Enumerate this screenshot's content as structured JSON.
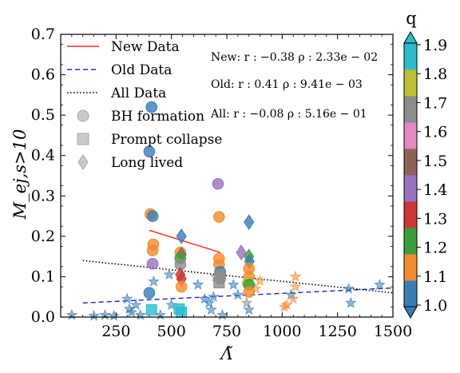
{
  "chart_data": {
    "type": "scatter",
    "xlabel": "Λ̃",
    "ylabel": "M_ej,s>10",
    "xlim": [
      0,
      1500
    ],
    "ylim": [
      0,
      0.7
    ],
    "xticks": [
      250,
      500,
      750,
      1000,
      1250,
      1500
    ],
    "xtick_labels": [
      "250",
      "500",
      "750",
      "1000",
      "1250",
      "1500"
    ],
    "yticks": [
      0.0,
      0.1,
      0.2,
      0.3,
      0.4,
      0.5,
      0.6,
      0.7
    ],
    "ytick_labels": [
      "0.0",
      "0.1",
      "0.2",
      "0.3",
      "0.4",
      "0.5",
      "0.6",
      "0.7"
    ],
    "grid": false,
    "legend_position": "top-left",
    "legend": [
      {
        "label": "New Data",
        "kind": "line",
        "style": "solid",
        "color": "#ff2a1a"
      },
      {
        "label": "Old Data",
        "kind": "line",
        "style": "dashed",
        "color": "#1f1fd6"
      },
      {
        "label": "All Data",
        "kind": "line",
        "style": "dotted",
        "color": "#000000"
      },
      {
        "label": "BH formation",
        "kind": "marker",
        "marker": "circle",
        "color": "#bdbdbd"
      },
      {
        "label": "Prompt collapse",
        "kind": "marker",
        "marker": "square",
        "color": "#bdbdbd"
      },
      {
        "label": "Long lived",
        "kind": "marker",
        "marker": "diamond",
        "color": "#bdbdbd"
      }
    ],
    "annotations": [
      "New: r : −0.38 ρ : 2.33e − 02",
      "Old: r : 0.41 ρ : 9.41e − 03",
      "All: r : −0.08 ρ : 5.16e − 01"
    ],
    "fit_lines": [
      {
        "name": "New Data",
        "x": [
          400,
          720
        ],
        "y": [
          0.215,
          0.16
        ]
      },
      {
        "name": "Old Data",
        "x": [
          100,
          1500
        ],
        "y": [
          0.035,
          0.072
        ]
      },
      {
        "name": "All Data",
        "x": [
          100,
          1500
        ],
        "y": [
          0.14,
          0.06
        ]
      }
    ],
    "colorbar": {
      "title": "q",
      "min": 1.0,
      "max": 1.9,
      "tick_labels": [
        "1.0",
        "1.1",
        "1.2",
        "1.3",
        "1.4",
        "1.5",
        "1.6",
        "1.7",
        "1.8",
        "1.9"
      ],
      "colors": [
        "#3a7db3",
        "#f58b30",
        "#3b9e3b",
        "#cc3737",
        "#9a72bd",
        "#8e6257",
        "#e389c2",
        "#8c8c8c",
        "#bdbf32",
        "#2dbbcc"
      ]
    },
    "points_new": [
      {
        "x": 410,
        "y": 0.52,
        "q": 1.0,
        "marker": "circle"
      },
      {
        "x": 400,
        "y": 0.41,
        "q": 1.0,
        "marker": "circle"
      },
      {
        "x": 405,
        "y": 0.255,
        "q": 1.1,
        "marker": "circle"
      },
      {
        "x": 415,
        "y": 0.25,
        "q": 1.0,
        "marker": "circle"
      },
      {
        "x": 418,
        "y": 0.18,
        "q": 1.1,
        "marker": "circle"
      },
      {
        "x": 415,
        "y": 0.165,
        "q": 1.1,
        "marker": "circle"
      },
      {
        "x": 415,
        "y": 0.132,
        "q": 1.4,
        "marker": "circle"
      },
      {
        "x": 400,
        "y": 0.06,
        "q": 1.0,
        "marker": "circle"
      },
      {
        "x": 410,
        "y": 0.018,
        "q": 1.9,
        "marker": "square"
      },
      {
        "x": 545,
        "y": 0.2,
        "q": 1.0,
        "marker": "diamond"
      },
      {
        "x": 540,
        "y": 0.16,
        "q": 1.1,
        "marker": "circle"
      },
      {
        "x": 545,
        "y": 0.155,
        "q": 1.5,
        "marker": "diamond"
      },
      {
        "x": 540,
        "y": 0.145,
        "q": 1.2,
        "marker": "circle"
      },
      {
        "x": 540,
        "y": 0.13,
        "q": 1.7,
        "marker": "circle"
      },
      {
        "x": 540,
        "y": 0.105,
        "q": 1.3,
        "marker": "diamond"
      },
      {
        "x": 545,
        "y": 0.095,
        "q": 1.3,
        "marker": "diamond"
      },
      {
        "x": 545,
        "y": 0.075,
        "q": 1.1,
        "marker": "circle"
      },
      {
        "x": 535,
        "y": 0.02,
        "q": 1.9,
        "marker": "square"
      },
      {
        "x": 545,
        "y": 0.012,
        "q": 1.9,
        "marker": "square"
      },
      {
        "x": 710,
        "y": 0.33,
        "q": 1.4,
        "marker": "circle"
      },
      {
        "x": 715,
        "y": 0.248,
        "q": 1.1,
        "marker": "circle"
      },
      {
        "x": 715,
        "y": 0.145,
        "q": 1.1,
        "marker": "circle"
      },
      {
        "x": 715,
        "y": 0.13,
        "q": 1.1,
        "marker": "circle"
      },
      {
        "x": 720,
        "y": 0.112,
        "q": 1.0,
        "marker": "circle"
      },
      {
        "x": 720,
        "y": 0.105,
        "q": 1.7,
        "marker": "circle"
      },
      {
        "x": 720,
        "y": 0.095,
        "q": 1.7,
        "marker": "circle"
      },
      {
        "x": 715,
        "y": 0.085,
        "q": 1.7,
        "marker": "square"
      },
      {
        "x": 850,
        "y": 0.235,
        "q": 1.0,
        "marker": "diamond"
      },
      {
        "x": 815,
        "y": 0.16,
        "q": 1.4,
        "marker": "diamond"
      },
      {
        "x": 850,
        "y": 0.15,
        "q": 1.2,
        "marker": "diamond"
      },
      {
        "x": 852,
        "y": 0.138,
        "q": 1.0,
        "marker": "diamond"
      },
      {
        "x": 850,
        "y": 0.12,
        "q": 1.1,
        "marker": "circle"
      },
      {
        "x": 850,
        "y": 0.1,
        "q": 1.1,
        "marker": "circle"
      },
      {
        "x": 845,
        "y": 0.085,
        "q": 1.8,
        "marker": "circle"
      },
      {
        "x": 850,
        "y": 0.08,
        "q": 1.2,
        "marker": "circle"
      },
      {
        "x": 850,
        "y": 0.062,
        "q": 1.1,
        "marker": "circle"
      }
    ],
    "points_old": [
      {
        "x": 50,
        "y": 0.005,
        "q": 1.0
      },
      {
        "x": 150,
        "y": 0.003,
        "q": 1.0
      },
      {
        "x": 200,
        "y": 0.005,
        "q": 1.0
      },
      {
        "x": 240,
        "y": 0.003,
        "q": 1.0
      },
      {
        "x": 300,
        "y": 0.045,
        "q": 1.0
      },
      {
        "x": 310,
        "y": 0.02,
        "q": 1.0
      },
      {
        "x": 320,
        "y": 0.012,
        "q": 1.0
      },
      {
        "x": 340,
        "y": 0.03,
        "q": 1.0
      },
      {
        "x": 360,
        "y": 0.005,
        "q": 1.0
      },
      {
        "x": 420,
        "y": 0.088,
        "q": 1.0
      },
      {
        "x": 450,
        "y": 0.005,
        "q": 1.0
      },
      {
        "x": 490,
        "y": 0.105,
        "q": 1.0
      },
      {
        "x": 500,
        "y": 0.03,
        "q": 1.0
      },
      {
        "x": 620,
        "y": 0.08,
        "q": 1.0
      },
      {
        "x": 650,
        "y": 0.045,
        "q": 1.0
      },
      {
        "x": 670,
        "y": 0.035,
        "q": 1.0
      },
      {
        "x": 680,
        "y": 0.018,
        "q": 1.0
      },
      {
        "x": 690,
        "y": 0.05,
        "q": 1.0
      },
      {
        "x": 700,
        "y": 0.1,
        "q": 1.7
      },
      {
        "x": 730,
        "y": 0.005,
        "q": 1.0
      },
      {
        "x": 780,
        "y": 0.08,
        "q": 1.0
      },
      {
        "x": 800,
        "y": 0.055,
        "q": 1.0
      },
      {
        "x": 840,
        "y": 0.035,
        "q": 1.7
      },
      {
        "x": 850,
        "y": 0.018,
        "q": 1.0
      },
      {
        "x": 880,
        "y": 0.07,
        "q": 1.1
      },
      {
        "x": 900,
        "y": 0.09,
        "q": 1.1
      },
      {
        "x": 1010,
        "y": 0.025,
        "q": 1.1
      },
      {
        "x": 1020,
        "y": 0.03,
        "q": 1.1
      },
      {
        "x": 1040,
        "y": 0.055,
        "q": 1.0
      },
      {
        "x": 1050,
        "y": 0.045,
        "q": 1.1
      },
      {
        "x": 1060,
        "y": 0.1,
        "q": 1.1
      },
      {
        "x": 1060,
        "y": 0.075,
        "q": 1.1
      },
      {
        "x": 1300,
        "y": 0.07,
        "q": 1.0
      },
      {
        "x": 1310,
        "y": 0.035,
        "q": 1.0
      },
      {
        "x": 1440,
        "y": 0.08,
        "q": 1.0
      }
    ]
  }
}
